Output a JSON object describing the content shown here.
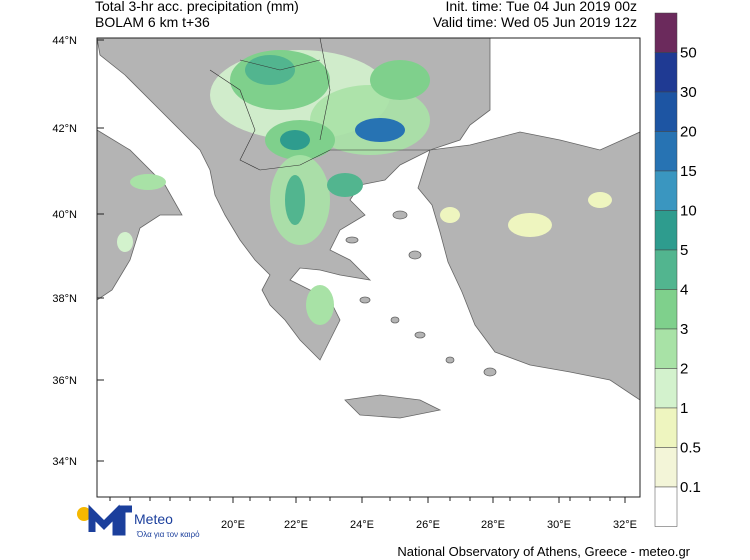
{
  "header": {
    "title": "Total 3-hr acc. precipitation (mm)",
    "subtitle": "BOLAM 6 km t+36",
    "init_time": "Init. time: Tue 04 Jun 2019 00z",
    "valid_time": "Valid time: Wed 05 Jun 2019 12z"
  },
  "map": {
    "lat_labels": [
      "44°N",
      "42°N",
      "40°N",
      "38°N",
      "36°N",
      "34°N"
    ],
    "lon_labels": [
      "20°E",
      "22°E",
      "24°E",
      "26°E",
      "28°E",
      "30°E",
      "32°E"
    ]
  },
  "legend": {
    "labels": [
      "50",
      "30",
      "20",
      "15",
      "10",
      "5",
      "4",
      "3",
      "2",
      "1",
      "0.5",
      "0.1"
    ],
    "colors": [
      "#6b2a5c",
      "#1f3a93",
      "#1d55a3",
      "#2773b3",
      "#3a96c0",
      "#2e9c8e",
      "#52b58f",
      "#7fd08c",
      "#a8e2a6",
      "#d3f2cd",
      "#eef5bf",
      "#f3f5d8",
      "#ffffff"
    ]
  },
  "logo": {
    "name": "Meteo",
    "tagline": "Όλα για τον καιρό"
  },
  "footer": {
    "credit": "National Observatory of Athens, Greece - meteo.gr"
  }
}
